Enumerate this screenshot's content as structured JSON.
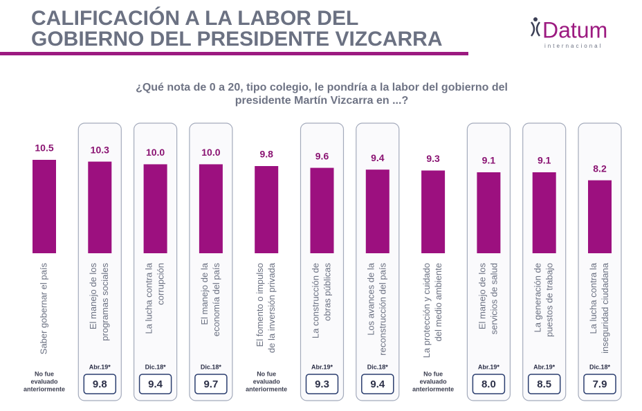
{
  "brand": {
    "name": "Datum",
    "tagline": "internacional"
  },
  "chart_data": {
    "type": "bar",
    "title": [
      "CALIFICACIÓN A LA LABOR DEL",
      "GOBIERNO DEL PRESIDENTE VIZCARRA"
    ],
    "subtitle": [
      "¿Qué nota de 0 a 20, tipo colegio, le pondría a la labor del gobierno del",
      "presidente Martín Vizcarra en ...?"
    ],
    "categories": [
      [
        "Saber gobernar el país"
      ],
      [
        "El manejo de los",
        "programas sociales"
      ],
      [
        "La lucha contra la",
        "corrupción"
      ],
      [
        "El manejo de la",
        "economía del país"
      ],
      [
        "El fomento o impulso",
        "de la inversión privada"
      ],
      [
        "La construcción de",
        "obras públicas"
      ],
      [
        "Los avances de la",
        "reconstrucción del país"
      ],
      [
        "La protección y cuidado",
        "del medio ambiente"
      ],
      [
        "El manejo de los",
        "servicios de salud"
      ],
      [
        "La generación de",
        "puestos de trabajo"
      ],
      [
        "La lucha contra la",
        "inseguridad ciudadana"
      ]
    ],
    "values": [
      10.5,
      10.3,
      10.0,
      10.0,
      9.8,
      9.6,
      9.4,
      9.3,
      9.1,
      9.1,
      8.2
    ],
    "value_labels": [
      "10.5",
      "10.3",
      "10.0",
      "10.0",
      "9.8",
      "9.6",
      "9.4",
      "9.3",
      "9.1",
      "9.1",
      "8.2"
    ],
    "color": "#9c107f",
    "ylim": [
      0,
      10.5
    ],
    "previous": [
      {
        "note": [
          "No fue",
          "evaluado",
          "anteriormente"
        ]
      },
      {
        "period": "Abr.19*",
        "value": "9.8"
      },
      {
        "period": "Dic.18*",
        "value": "9.4"
      },
      {
        "period": "Dic.18*",
        "value": "9.7"
      },
      {
        "note": [
          "No fue",
          "evaluado",
          "anteriormente"
        ]
      },
      {
        "period": "Abr.19*",
        "value": "9.3"
      },
      {
        "period": "Dic.18*",
        "value": "9.4"
      },
      {
        "note": [
          "No fue",
          "evaluado",
          "anteriormente"
        ]
      },
      {
        "period": "Abr.19*",
        "value": "8.0"
      },
      {
        "period": "Abr.19*",
        "value": "8.5"
      },
      {
        "period": "Dic.18*",
        "value": "7.9"
      }
    ]
  }
}
